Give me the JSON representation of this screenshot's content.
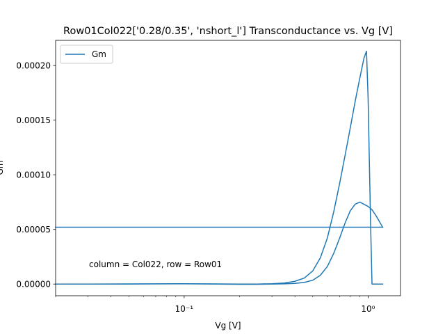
{
  "chart_data": {
    "type": "line",
    "title": "Row01Col022['0.28/0.35', 'nshort_l'] Transconductance vs. Vg [V]",
    "xlabel": "Vg [V]",
    "ylabel": "Gm",
    "xscale": "log",
    "xlim": [
      0.02,
      1.5
    ],
    "ylim": [
      -1.07e-05,
      0.000223
    ],
    "x_ticks": [
      {
        "value": 0.1,
        "label": "10⁻¹"
      },
      {
        "value": 1,
        "label": "10⁰"
      }
    ],
    "y_ticks": [
      {
        "value": 0.0,
        "label": "0.00000"
      },
      {
        "value": 5e-05,
        "label": "0.00005"
      },
      {
        "value": 0.0001,
        "label": "0.00010"
      },
      {
        "value": 0.00015,
        "label": "0.00015"
      },
      {
        "value": 0.0002,
        "label": "0.00020"
      }
    ],
    "grid": false,
    "legend": {
      "position": "top-left",
      "entries": [
        "Gm"
      ]
    },
    "annotation": "column = Col022, row = Row01",
    "series": [
      {
        "name": "Gm",
        "color": "#1f77b4",
        "x": [
          1.2,
          1.1,
          1.05,
          1.0,
          0.95,
          0.9,
          0.85,
          0.8,
          0.75,
          0.7,
          0.65,
          0.6,
          0.55,
          0.5,
          0.45,
          0.4,
          0.35,
          0.3,
          0.25,
          0.2,
          0.15,
          0.1,
          0.07,
          0.05,
          0.03,
          0.02,
          0.02,
          0.03,
          0.05,
          0.07,
          0.1,
          0.15,
          0.2,
          0.25,
          0.3,
          0.35,
          0.4,
          0.45,
          0.5,
          0.55,
          0.6,
          0.65,
          0.7,
          0.75,
          0.8,
          0.85,
          0.9,
          0.95,
          0.98,
          1.0,
          1.03,
          1.05,
          1.1,
          1.2
        ],
        "y": [
          5.2e-05,
          6.3e-05,
          6.8e-05,
          7.1e-05,
          7.3e-05,
          7.5e-05,
          7.3e-05,
          6.7e-05,
          5.6e-05,
          4.2e-05,
          2.8e-05,
          1.6e-05,
          8e-06,
          3.5e-06,
          1.5e-06,
          6e-07,
          2e-07,
          0.0,
          -3e-07,
          -3e-07,
          0.0,
          2e-07,
          1e-07,
          0.0,
          0.0,
          0.0,
          0.0,
          0.0,
          1e-07,
          2e-07,
          3e-07,
          1e-07,
          0.0,
          0.0,
          3e-07,
          9e-07,
          2.5e-06,
          5.5e-06,
          1.2e-05,
          2.4e-05,
          4.2e-05,
          6.6e-05,
          9.2e-05,
          0.000118,
          0.000143,
          0.000167,
          0.000188,
          0.000207,
          0.000213,
          0.00017,
          6e-05,
          0.0,
          0.0,
          0.0
        ]
      },
      {
        "name": "",
        "color": "#1f77b4",
        "x": [
          0.02,
          1.2
        ],
        "y": [
          5.2e-05,
          5.2e-05
        ]
      }
    ]
  }
}
